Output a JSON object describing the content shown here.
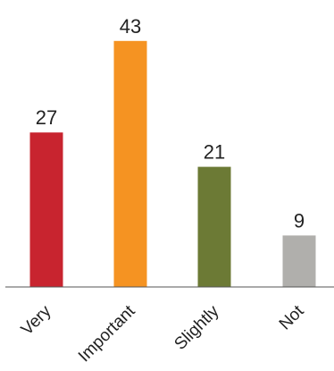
{
  "chart_data": {
    "type": "bar",
    "categories": [
      "Very",
      "Important",
      "Slightly",
      "Not"
    ],
    "values": [
      27,
      43,
      21,
      9
    ],
    "colors": [
      "#c8242f",
      "#f59322",
      "#6c7a35",
      "#b0afac"
    ],
    "ylim": [
      0,
      50
    ],
    "axis_color": "#555555",
    "grid": false,
    "legend": "none"
  }
}
